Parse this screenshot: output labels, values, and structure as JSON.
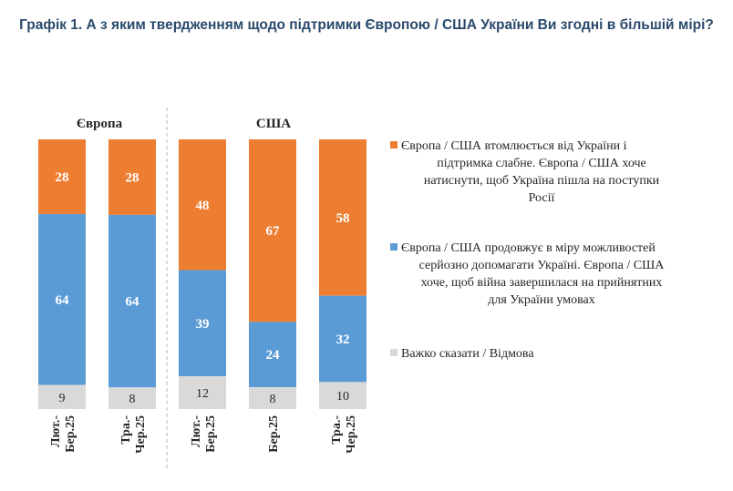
{
  "title": "Графік 1. А з яким твердженням щодо підтримки Європою / США України Ви згодні в більшій мірі?",
  "chart_data": {
    "type": "bar",
    "stacked": true,
    "percent": true,
    "groups": [
      {
        "name": "Європа",
        "bars": [
          {
            "label": [
              "Лют.-",
              "Бер.25"
            ],
            "values": [
              28,
              64,
              9
            ]
          },
          {
            "label": [
              "Тра.-",
              "Чер.25"
            ],
            "values": [
              28,
              64,
              8
            ]
          }
        ]
      },
      {
        "name": "США",
        "bars": [
          {
            "label": [
              "Лют.-",
              "Бер.25"
            ],
            "values": [
              48,
              39,
              12
            ]
          },
          {
            "label": [
              "Бер.25"
            ],
            "values": [
              67,
              24,
              8
            ]
          },
          {
            "label": [
              "Тра.-",
              "Чер.25"
            ],
            "values": [
              58,
              32,
              10
            ]
          }
        ]
      }
    ],
    "series": [
      {
        "name": "Європа / США втомлюється від України і підтримка слабне. Європа / США хоче натиснути, щоб Україна пішла на поступки Росії",
        "color": "#ed7d31"
      },
      {
        "name": "Європа / США продовжує в міру можливостей серйозно допомагати Україні. Європа / США хоче, щоб війна завершилася на прийнятних для України умовах",
        "color": "#5b9bd5"
      },
      {
        "name": "Важко сказати / Відмова",
        "color": "#d9d9d9"
      }
    ],
    "legend_lines": [
      [
        "Європа / США втомлюється від України і",
        "підтримка слабне. Європа / США хоче",
        "натиснути, щоб Україна пішла на поступки",
        "Росії"
      ],
      [
        "Європа / США продовжує в міру можливостей",
        "серйозно допомагати Україні. Європа / США",
        "хоче, щоб війна завершилася на прийнятних",
        "для України умовах"
      ],
      [
        "Важко сказати / Відмова"
      ]
    ],
    "legend_position": "right",
    "grid": false
  }
}
